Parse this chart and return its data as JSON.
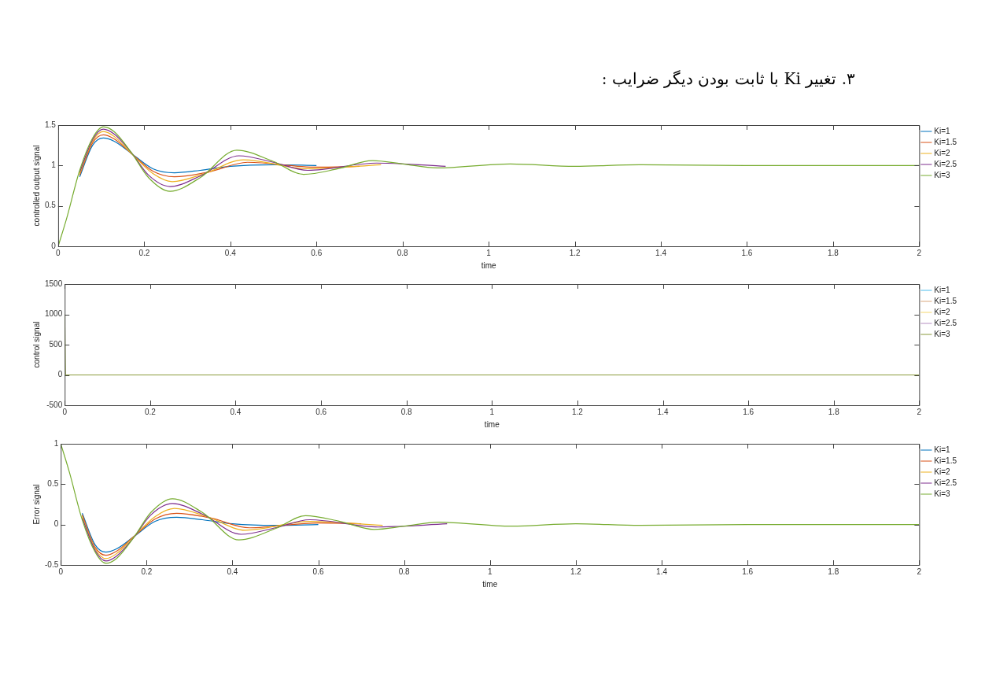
{
  "chart_data": [
    {
      "type": "line",
      "title": "۳. تغییر Ki با ثابت بودن دیگر ضرایب :",
      "xlabel": "time",
      "ylabel": "controlled output signal",
      "xlim": [
        0,
        2
      ],
      "xticks": [
        0,
        0.2,
        0.4,
        0.6,
        0.8,
        1,
        1.2,
        1.4,
        1.6,
        1.8,
        2
      ],
      "ylim": [
        0,
        1.5
      ],
      "yticks": [
        0,
        0.5,
        1,
        1.5
      ],
      "grid": false,
      "legend": "right",
      "marker": "none",
      "line_style": "solid",
      "series": [
        {
          "name": "Ki=1",
          "color": "#0072bd",
          "x": [
            0.05,
            0.08,
            0.105,
            0.13,
            0.17,
            0.22,
            0.27,
            0.33,
            0.4,
            0.5,
            0.6
          ],
          "values": [
            0.86,
            1.25,
            1.34,
            1.3,
            1.15,
            0.96,
            0.91,
            0.94,
            0.99,
            1.01,
            1.0
          ]
        },
        {
          "name": "Ki=1.5",
          "color": "#d95319",
          "x": [
            0.05,
            0.08,
            0.105,
            0.13,
            0.17,
            0.22,
            0.27,
            0.35,
            0.44,
            0.6,
            0.7
          ],
          "values": [
            0.88,
            1.28,
            1.38,
            1.33,
            1.15,
            0.93,
            0.86,
            0.92,
            1.04,
            0.98,
            0.99
          ]
        },
        {
          "name": "Ki=2",
          "color": "#edb120",
          "x": [
            0.05,
            0.08,
            0.105,
            0.13,
            0.17,
            0.22,
            0.265,
            0.34,
            0.43,
            0.58,
            0.75
          ],
          "values": [
            0.9,
            1.3,
            1.42,
            1.36,
            1.15,
            0.9,
            0.8,
            0.9,
            1.07,
            0.96,
            1.01
          ]
        },
        {
          "name": "Ki=2.5",
          "color": "#7e2f8e",
          "x": [
            0.05,
            0.08,
            0.105,
            0.13,
            0.17,
            0.21,
            0.26,
            0.33,
            0.42,
            0.5,
            0.58,
            0.74,
            0.9
          ],
          "values": [
            0.92,
            1.32,
            1.45,
            1.39,
            1.16,
            0.88,
            0.74,
            0.87,
            1.12,
            1.04,
            0.94,
            1.03,
            0.99
          ]
        },
        {
          "name": "Ki=3",
          "color": "#77ac30",
          "x": [
            0,
            0.02,
            0.05,
            0.08,
            0.105,
            0.13,
            0.17,
            0.21,
            0.26,
            0.33,
            0.415,
            0.5,
            0.57,
            0.65,
            0.73,
            0.8,
            0.88,
            1.05,
            1.2,
            1.35,
            1.6,
            2
          ],
          "values": [
            0,
            0.35,
            0.94,
            1.34,
            1.48,
            1.42,
            1.16,
            0.85,
            0.68,
            0.85,
            1.19,
            1.05,
            0.89,
            0.96,
            1.06,
            1.02,
            0.97,
            1.02,
            0.99,
            1.01,
            1.0,
            1.0
          ]
        }
      ]
    },
    {
      "type": "line",
      "xlabel": "time",
      "ylabel": "control signal",
      "xlim": [
        0,
        2
      ],
      "xticks": [
        0,
        0.2,
        0.4,
        0.6,
        0.8,
        1,
        1.2,
        1.4,
        1.6,
        1.8,
        2
      ],
      "ylim": [
        -500,
        1500
      ],
      "yticks": [
        -500,
        0,
        500,
        1000,
        1500
      ],
      "grid": false,
      "legend": "right",
      "marker": "none",
      "line_style": "solid",
      "series": [
        {
          "name": "Ki=1",
          "color": "#4dbeee"
        },
        {
          "name": "Ki=1.5",
          "color": "#d9a77f"
        },
        {
          "name": "Ki=2",
          "color": "#f5d76e"
        },
        {
          "name": "Ki=2.5",
          "color": "#b58fc2"
        },
        {
          "name": "Ki=3",
          "color": "#8a9a3c",
          "x": [
            0,
            0.002,
            2
          ],
          "values": [
            1000,
            0,
            0
          ]
        }
      ]
    },
    {
      "type": "line",
      "xlabel": "time",
      "ylabel": "Error signal",
      "xlim": [
        0,
        2
      ],
      "xticks": [
        0,
        0.2,
        0.4,
        0.6,
        0.8,
        1,
        1.2,
        1.4,
        1.6,
        1.8,
        2
      ],
      "ylim": [
        -0.5,
        1
      ],
      "yticks": [
        -0.5,
        0,
        0.5,
        1
      ],
      "grid": false,
      "legend": "right",
      "marker": "none",
      "line_style": "solid",
      "series": [
        {
          "name": "Ki=1",
          "color": "#0072bd",
          "x": [
            0.05,
            0.08,
            0.105,
            0.13,
            0.17,
            0.22,
            0.27,
            0.33,
            0.4,
            0.5,
            0.6
          ],
          "values": [
            0.14,
            -0.25,
            -0.34,
            -0.3,
            -0.15,
            0.04,
            0.09,
            0.06,
            0.01,
            -0.01,
            0
          ]
        },
        {
          "name": "Ki=1.5",
          "color": "#d95319",
          "x": [
            0.05,
            0.08,
            0.105,
            0.13,
            0.17,
            0.22,
            0.27,
            0.35,
            0.44,
            0.6,
            0.7
          ],
          "values": [
            0.12,
            -0.28,
            -0.38,
            -0.33,
            -0.15,
            0.07,
            0.14,
            0.08,
            -0.04,
            0.02,
            0.01
          ]
        },
        {
          "name": "Ki=2",
          "color": "#edb120",
          "x": [
            0.05,
            0.08,
            0.105,
            0.13,
            0.17,
            0.22,
            0.265,
            0.34,
            0.43,
            0.58,
            0.75
          ],
          "values": [
            0.1,
            -0.3,
            -0.42,
            -0.36,
            -0.15,
            0.1,
            0.2,
            0.1,
            -0.07,
            0.04,
            -0.01
          ]
        },
        {
          "name": "Ki=2.5",
          "color": "#7e2f8e",
          "x": [
            0.05,
            0.08,
            0.105,
            0.13,
            0.17,
            0.21,
            0.26,
            0.33,
            0.42,
            0.5,
            0.58,
            0.74,
            0.9
          ],
          "values": [
            0.08,
            -0.32,
            -0.45,
            -0.39,
            -0.16,
            0.12,
            0.26,
            0.13,
            -0.12,
            -0.04,
            0.06,
            -0.03,
            0.01
          ]
        },
        {
          "name": "Ki=3",
          "color": "#77ac30",
          "x": [
            0,
            0.02,
            0.05,
            0.08,
            0.105,
            0.13,
            0.17,
            0.21,
            0.26,
            0.33,
            0.415,
            0.5,
            0.57,
            0.65,
            0.73,
            0.8,
            0.88,
            1.05,
            1.2,
            1.35,
            1.6,
            2
          ],
          "values": [
            1,
            0.65,
            0.06,
            -0.34,
            -0.48,
            -0.42,
            -0.16,
            0.15,
            0.32,
            0.15,
            -0.19,
            -0.05,
            0.11,
            0.04,
            -0.06,
            -0.02,
            0.03,
            -0.02,
            0.01,
            -0.01,
            0,
            0
          ]
        }
      ]
    }
  ]
}
